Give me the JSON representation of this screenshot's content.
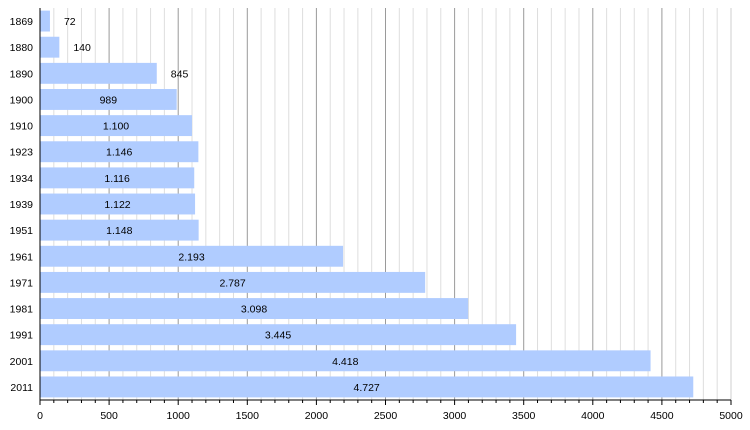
{
  "chart_data": {
    "type": "bar",
    "orientation": "horizontal",
    "categories": [
      "1869",
      "1880",
      "1890",
      "1900",
      "1910",
      "1923",
      "1934",
      "1939",
      "1951",
      "1961",
      "1971",
      "1981",
      "1991",
      "2001",
      "2011"
    ],
    "values": [
      72,
      140,
      845,
      989,
      1100,
      1146,
      1116,
      1122,
      1148,
      2193,
      2787,
      3098,
      3445,
      4418,
      4727
    ],
    "value_labels": [
      "72",
      "140",
      "845",
      "989",
      "1.100",
      "1.146",
      "1.116",
      "1.122",
      "1.148",
      "2.193",
      "2.787",
      "3.098",
      "3.445",
      "4.418",
      "4.727"
    ],
    "xlim": [
      0,
      5000
    ],
    "x_ticks": [
      "0",
      "500",
      "1000",
      "1500",
      "2000",
      "2500",
      "3000",
      "3500",
      "4000",
      "4500",
      "5000"
    ],
    "grid": true,
    "bar_color": "#b0ccff",
    "title": "",
    "xlabel": "",
    "ylabel": ""
  }
}
